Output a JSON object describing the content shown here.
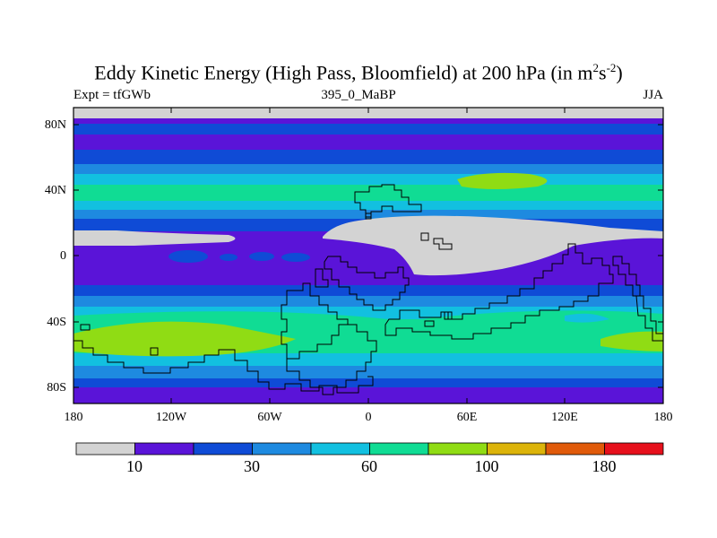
{
  "title_main": "Eddy Kinetic Energy (High Pass, Bloomfield) at 200 hPa (in m",
  "title_sup1": "2",
  "title_mid": "s",
  "title_sup2": "-2",
  "title_end": ")",
  "subtitle_left": "Expt = tfGWb",
  "subtitle_center": "395_0_MaBP",
  "subtitle_right": "JJA",
  "y_labels": [
    "80N",
    "40N",
    "0",
    "40S",
    "80S"
  ],
  "x_labels": [
    "180",
    "120W",
    "60W",
    "0",
    "60E",
    "120E",
    "180"
  ],
  "colorbar": {
    "colors": [
      "#d3d3d3",
      "#5a14d8",
      "#0f4bd6",
      "#1e8ae0",
      "#12c0e0",
      "#10dc94",
      "#90dc14",
      "#dcb40a",
      "#e05a0a",
      "#e6101c"
    ],
    "labels": [
      "10",
      "30",
      "60",
      "100",
      "180"
    ]
  },
  "map": {
    "fill_levels": {
      "gray": "#d3d3d3",
      "purple": "#5a14d8",
      "blue": "#0f4bd6",
      "mid_blue": "#1e8ae0",
      "cyan": "#12c0e0",
      "green": "#10dc94",
      "lime": "#90dc14"
    }
  }
}
